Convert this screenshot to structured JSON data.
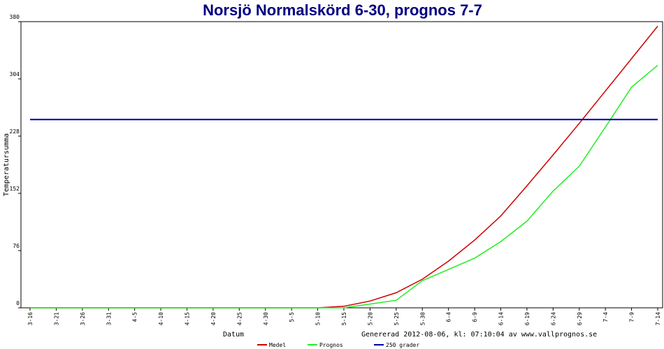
{
  "chart_data": {
    "type": "line",
    "title": "Norsjö Normalskörd 6-30, prognos 7-7",
    "x_label": "Datum",
    "y_label": "Temperatursumma",
    "annotation": "Genererad 2012-08-06, kl: 07:10:04 av www.vallprognos.se",
    "categories": [
      "3-16",
      "3-21",
      "3-26",
      "3-31",
      "4-5",
      "4-10",
      "4-15",
      "4-20",
      "4-25",
      "4-30",
      "5-5",
      "5-10",
      "5-15",
      "5-20",
      "5-25",
      "5-30",
      "6-4",
      "6-9",
      "6-14",
      "6-19",
      "6-24",
      "6-29",
      "7-4",
      "7-9",
      "7-14"
    ],
    "series": [
      {
        "name": "Medel",
        "color": "#cc0000",
        "values": [
          0,
          0,
          0,
          0,
          0,
          0,
          0,
          0,
          0,
          0,
          0,
          0,
          2,
          9,
          20,
          38,
          62,
          90,
          122,
          162,
          203,
          245,
          288,
          331,
          374
        ]
      },
      {
        "name": "Prognos",
        "color": "#22ee22",
        "values": [
          0,
          0,
          0,
          0,
          0,
          0,
          0,
          0,
          0,
          0,
          0,
          0,
          0,
          5,
          10,
          36,
          51,
          66,
          88,
          115,
          155,
          188,
          240,
          293,
          322
        ]
      },
      {
        "name": "250 grader",
        "color": "#0000aa",
        "values": [
          250,
          250,
          250,
          250,
          250,
          250,
          250,
          250,
          250,
          250,
          250,
          250,
          250,
          250,
          250,
          250,
          250,
          250,
          250,
          250,
          250,
          250,
          250,
          250,
          250
        ]
      }
    ],
    "ylim": [
      0,
      380
    ],
    "yticks": [
      0,
      76,
      152,
      228,
      304,
      380
    ],
    "grid": false,
    "legend": "bottom"
  }
}
